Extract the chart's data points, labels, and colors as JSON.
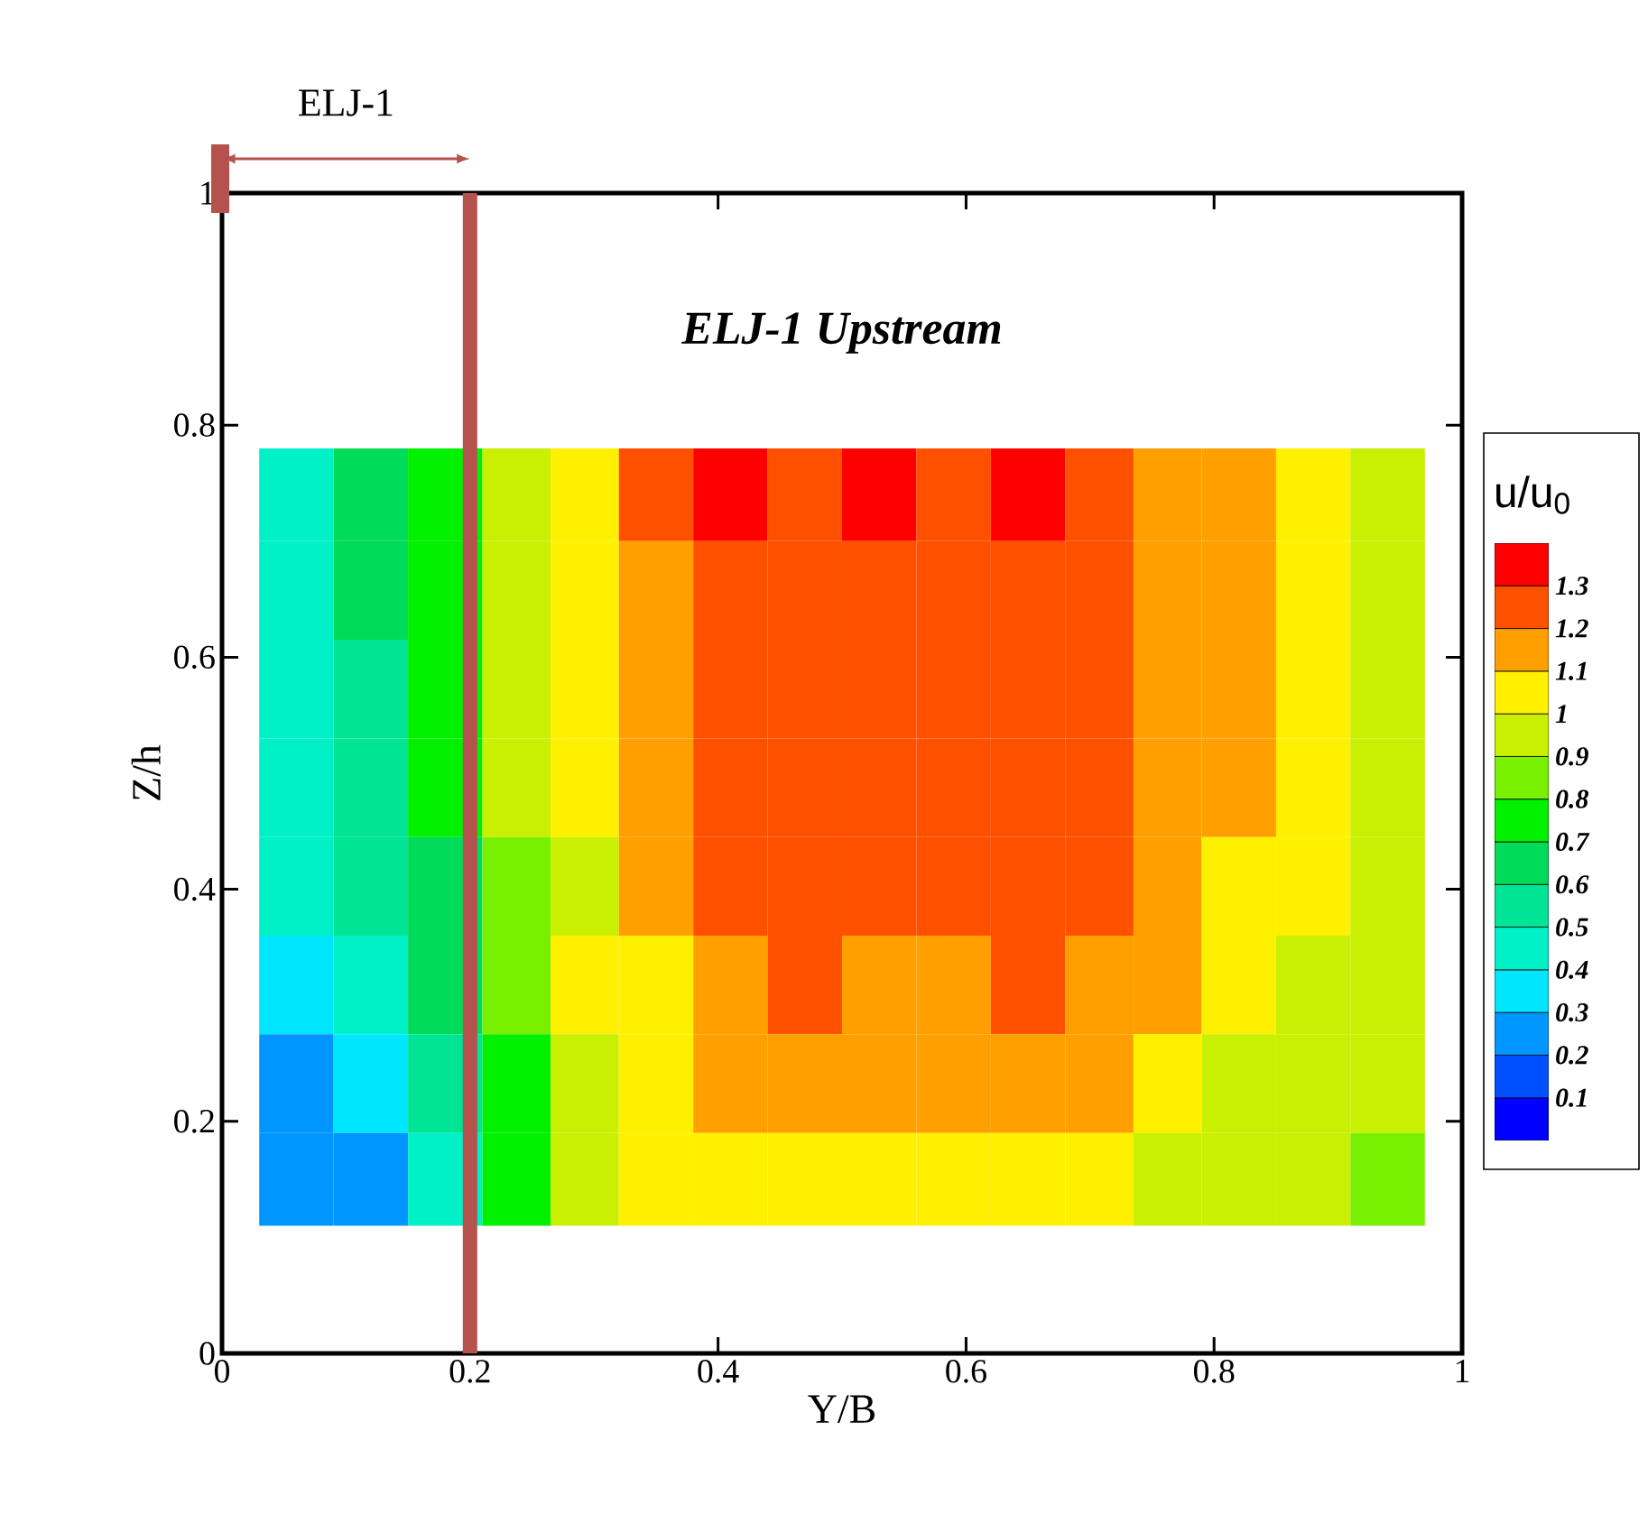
{
  "chart_data": {
    "type": "heatmap",
    "title": "ELJ-1 Upstream",
    "xlabel": "Y/B",
    "ylabel": "Z/h",
    "clabel": "u/u$_{0}$",
    "annotations": [
      "ELJ-1"
    ],
    "xlim": [
      0,
      1
    ],
    "ylim": [
      0,
      1
    ],
    "xticks": [
      0,
      0.2,
      0.4,
      0.6,
      0.8,
      1
    ],
    "yticks": [
      0,
      0.2,
      0.4,
      0.6,
      0.8,
      1
    ],
    "x": [
      0.06,
      0.12,
      0.18,
      0.24,
      0.29,
      0.35,
      0.41,
      0.47,
      0.53,
      0.59,
      0.65,
      0.71,
      0.76,
      0.82,
      0.88,
      0.94
    ],
    "y": [
      0.74,
      0.66,
      0.57,
      0.49,
      0.4,
      0.32,
      0.23,
      0.15
    ],
    "cells": [
      [
        0.45,
        0.65,
        0.75,
        0.95,
        1.05,
        1.25,
        1.35,
        1.25,
        1.35,
        1.25,
        1.35,
        1.25,
        1.15,
        1.15,
        1.05,
        0.95
      ],
      [
        0.45,
        0.65,
        0.75,
        0.95,
        1.05,
        1.15,
        1.25,
        1.25,
        1.25,
        1.25,
        1.25,
        1.25,
        1.15,
        1.15,
        1.05,
        0.95
      ],
      [
        0.45,
        0.55,
        0.75,
        0.95,
        1.05,
        1.15,
        1.25,
        1.25,
        1.25,
        1.25,
        1.25,
        1.25,
        1.15,
        1.15,
        1.05,
        0.95
      ],
      [
        0.45,
        0.55,
        0.75,
        0.95,
        1.05,
        1.15,
        1.25,
        1.25,
        1.25,
        1.25,
        1.25,
        1.25,
        1.15,
        1.15,
        1.05,
        0.95
      ],
      [
        0.45,
        0.55,
        0.65,
        0.85,
        0.95,
        1.15,
        1.25,
        1.25,
        1.25,
        1.25,
        1.25,
        1.25,
        1.15,
        1.05,
        1.05,
        0.95
      ],
      [
        0.35,
        0.45,
        0.65,
        0.85,
        1.05,
        1.05,
        1.15,
        1.25,
        1.15,
        1.15,
        1.25,
        1.15,
        1.15,
        1.05,
        0.95,
        0.95
      ],
      [
        0.25,
        0.35,
        0.55,
        0.75,
        0.95,
        1.05,
        1.15,
        1.15,
        1.15,
        1.15,
        1.15,
        1.15,
        1.05,
        0.95,
        0.95,
        0.95
      ],
      [
        0.25,
        0.25,
        0.45,
        0.75,
        0.95,
        1.05,
        1.05,
        1.05,
        1.05,
        1.05,
        1.05,
        1.05,
        0.95,
        0.95,
        0.95,
        0.85
      ]
    ],
    "clim": [
      0,
      1.4
    ],
    "cticks": [
      0.1,
      0.2,
      0.3,
      0.4,
      0.5,
      0.6,
      0.7,
      0.8,
      0.9,
      1,
      1.1,
      1.2,
      1.3
    ],
    "ref_lines": [
      {
        "axis": "x",
        "value": 0.2,
        "color": "#b5524e"
      }
    ]
  }
}
